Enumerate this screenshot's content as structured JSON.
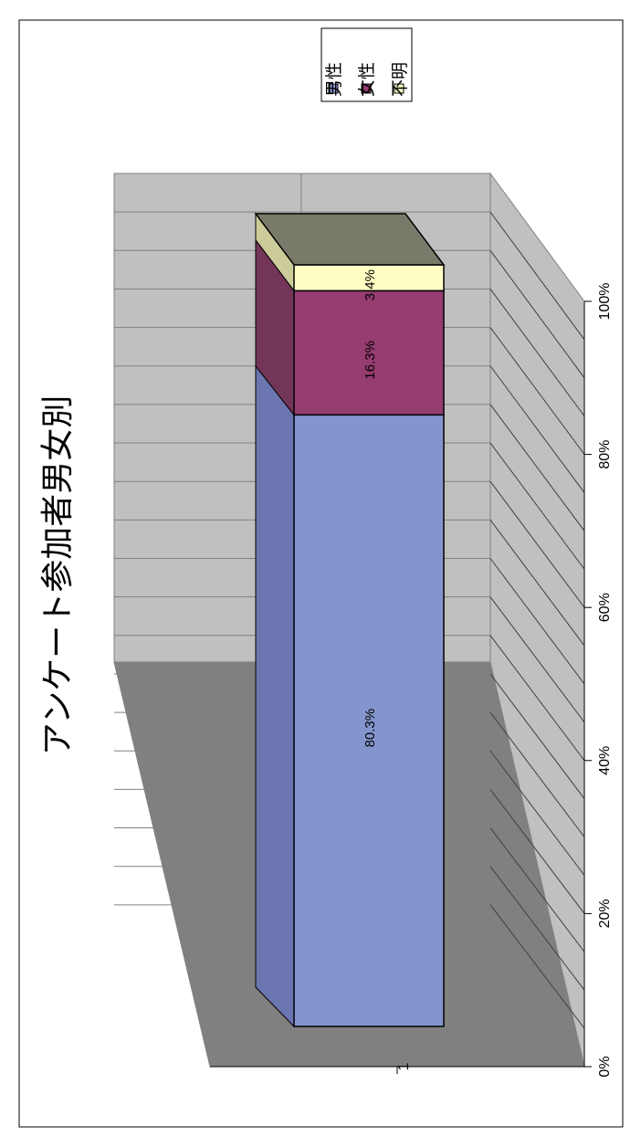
{
  "chart_data": {
    "type": "bar",
    "stacked": "percent",
    "three_d": true,
    "orientation": "rotated-90",
    "title": "アンケート参加者男女別",
    "categories": [
      "1"
    ],
    "series": [
      {
        "name": "男性",
        "values": [
          80.3
        ],
        "label": "80.3%",
        "color": "#8395cd",
        "side_color": "#6b75b0"
      },
      {
        "name": "女性",
        "values": [
          16.3
        ],
        "label": "16.3%",
        "color": "#953c70",
        "side_color": "#733659"
      },
      {
        "name": "不明",
        "values": [
          3.4
        ],
        "label": "3.4%",
        "color": "#ffffc4",
        "side_color": "#cccc9b"
      }
    ],
    "value_axis": {
      "range": [
        0,
        100
      ],
      "tick_labels": [
        "0%",
        "20%",
        "40%",
        "60%",
        "80%",
        "100%"
      ]
    },
    "grid": true,
    "legend_position": "top-right"
  }
}
